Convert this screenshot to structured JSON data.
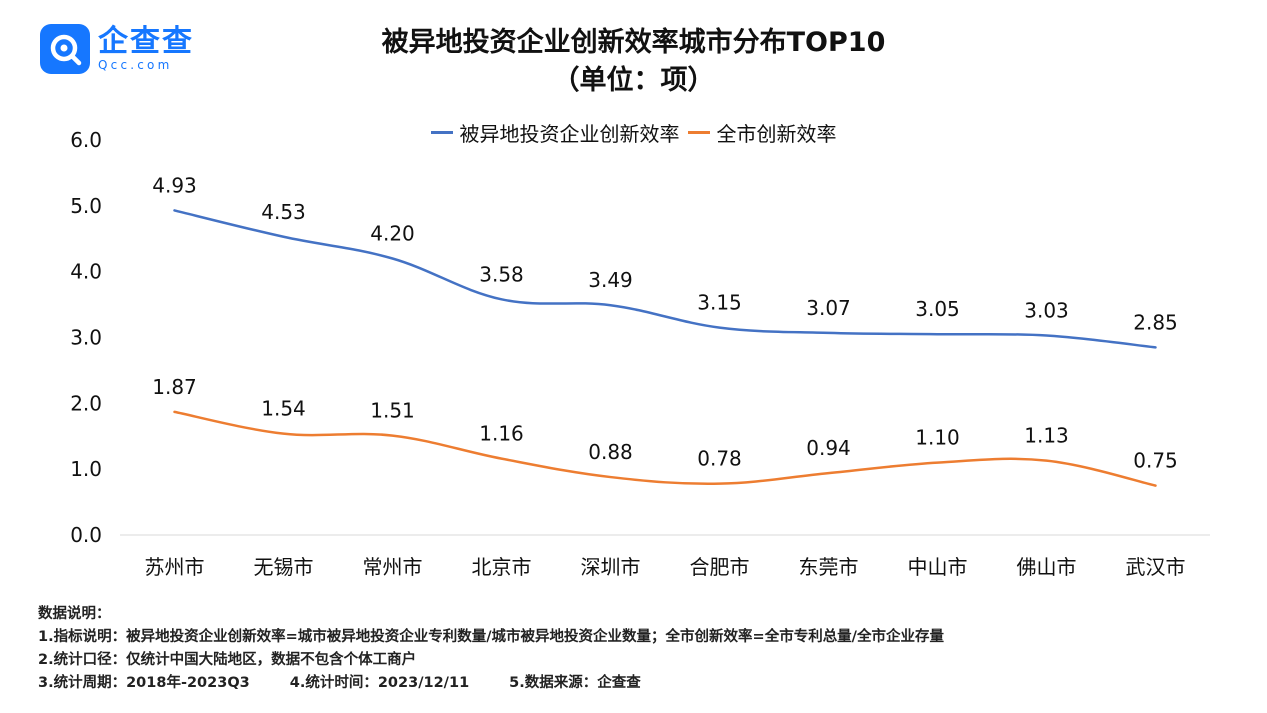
{
  "logo": {
    "name": "企查查",
    "domain": "Qcc.com",
    "icon": "qcc-logo-icon"
  },
  "title": {
    "line1": "被异地投资企业创新效率城市分布TOP10",
    "line2": "（单位：项）"
  },
  "colors": {
    "series1": "#4472c4",
    "series2": "#ed7d31",
    "axis": "#d9d9d9",
    "brand": "#1677ff"
  },
  "chart_data": {
    "type": "line",
    "title": "被异地投资企业创新效率城市分布TOP10",
    "subtitle": "（单位：项）",
    "categories": [
      "苏州市",
      "无锡市",
      "常州市",
      "北京市",
      "深圳市",
      "合肥市",
      "东莞市",
      "中山市",
      "佛山市",
      "武汉市"
    ],
    "series": [
      {
        "name": "被异地投资企业创新效率",
        "values": [
          4.93,
          4.53,
          4.2,
          3.58,
          3.49,
          3.15,
          3.07,
          3.05,
          3.03,
          2.85
        ]
      },
      {
        "name": "全市创新效率",
        "values": [
          1.87,
          1.54,
          1.51,
          1.16,
          0.88,
          0.78,
          0.94,
          1.1,
          1.13,
          0.75
        ]
      }
    ],
    "ylim": [
      0,
      6
    ],
    "yticks": [
      "0.0",
      "1.0",
      "2.0",
      "3.0",
      "4.0",
      "5.0",
      "6.0"
    ],
    "xlabel": "",
    "ylabel": "",
    "legend": "top-center",
    "smooth": true,
    "grid": false
  },
  "notes": {
    "heading": "数据说明：",
    "line1": "1.指标说明：被异地投资企业创新效率=城市被异地投资企业专利数量/城市被异地投资企业数量；全市创新效率=全市专利总量/全市企业存量",
    "line2": "2.统计口径：仅统计中国大陆地区，数据不包含个体工商户",
    "line3a": "3.统计周期：2018年-2023Q3",
    "line3b": "4.统计时间：2023/12/11",
    "line3c": "5.数据来源：企查查"
  }
}
